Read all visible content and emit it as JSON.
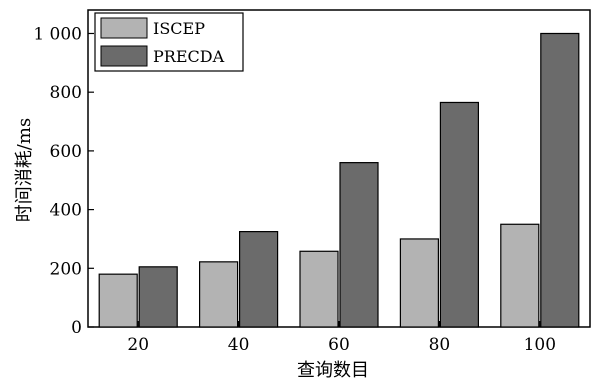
{
  "chart_data": {
    "type": "bar",
    "xlabel": "查询数目",
    "ylabel": "时间消耗/ms",
    "categories": [
      "20",
      "40",
      "60",
      "80",
      "100"
    ],
    "ylim": [
      0,
      1080
    ],
    "yticks": [
      0,
      200,
      400,
      600,
      800,
      1000
    ],
    "ytick_labels": [
      "0",
      "200",
      "400",
      "600",
      "800",
      "1 000"
    ],
    "series": [
      {
        "name": "ISCEP",
        "color": "#b3b3b3",
        "values": [
          180,
          222,
          258,
          300,
          350
        ]
      },
      {
        "name": "PRECDA",
        "color": "#6b6b6b",
        "values": [
          205,
          325,
          560,
          765,
          1000
        ]
      }
    ],
    "legend_position": "top-left",
    "grid": false
  }
}
